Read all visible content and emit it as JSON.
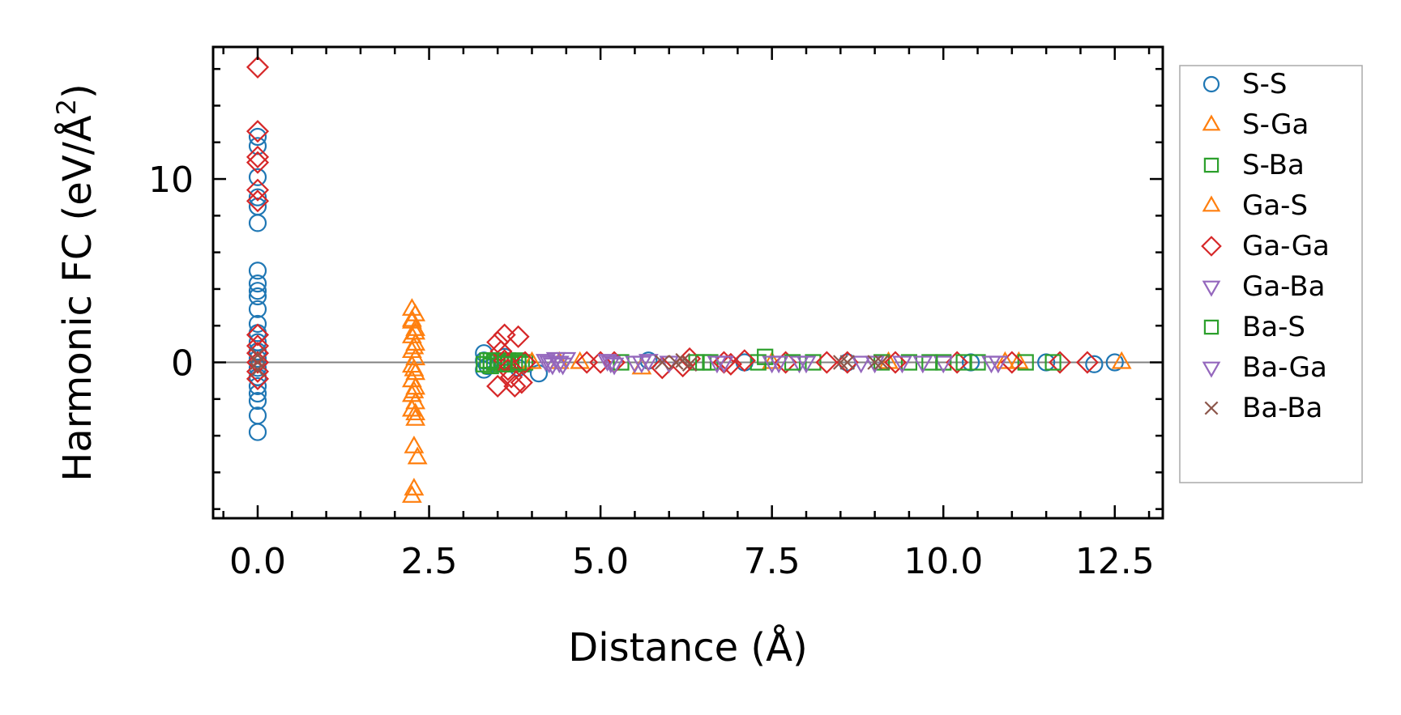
{
  "chart_data": {
    "type": "scatter",
    "title": "",
    "xlabel": "Distance (Å)",
    "ylabel": "Harmonic FC (eV/Å",
    "ylabel_superscript": "2",
    "ylabel_suffix": ")",
    "xlim": [
      -0.65,
      13.2
    ],
    "ylim": [
      -8.5,
      17.2
    ],
    "xticks": [
      0.0,
      2.5,
      5.0,
      7.5,
      10.0,
      12.5
    ],
    "xtick_labels": [
      "0.0",
      "2.5",
      "5.0",
      "7.5",
      "10.0",
      "12.5"
    ],
    "yticks": [
      0,
      10
    ],
    "ytick_labels": [
      "0",
      "10"
    ],
    "grid": false,
    "legend_position": "outside-right",
    "reference_line_y": 0,
    "series": [
      {
        "name": "S-S",
        "color": "#1f77b4",
        "marker": "circle",
        "filled": false,
        "points": [
          [
            0,
            12.3
          ],
          [
            0,
            11.8
          ],
          [
            0,
            10.1
          ],
          [
            0,
            9.0
          ],
          [
            0,
            8.5
          ],
          [
            0,
            7.6
          ],
          [
            0,
            5.0
          ],
          [
            0,
            4.3
          ],
          [
            0,
            3.9
          ],
          [
            0,
            3.6
          ],
          [
            0,
            2.9
          ],
          [
            0,
            2.1
          ],
          [
            0,
            1.6
          ],
          [
            0,
            1.1
          ],
          [
            0,
            0.6
          ],
          [
            0,
            0.2
          ],
          [
            0,
            -0.3
          ],
          [
            0,
            -0.8
          ],
          [
            0,
            -1.3
          ],
          [
            0,
            -1.7
          ],
          [
            0,
            -2.1
          ],
          [
            0,
            -2.9
          ],
          [
            0,
            -3.8
          ],
          [
            3.3,
            0.5
          ],
          [
            3.3,
            0.1
          ],
          [
            3.3,
            -0.4
          ],
          [
            3.35,
            -0.2
          ],
          [
            3.6,
            0.3
          ],
          [
            3.8,
            -0.3
          ],
          [
            4.1,
            -0.6
          ],
          [
            5.7,
            0.1
          ],
          [
            7.1,
            0.0
          ],
          [
            8.6,
            0.0
          ],
          [
            10.4,
            0.0
          ],
          [
            11.5,
            0.0
          ],
          [
            12.2,
            -0.1
          ],
          [
            12.5,
            0.0
          ]
        ]
      },
      {
        "name": "S-Ga",
        "color": "#ff7f0e",
        "marker": "triangle-up",
        "filled": false,
        "points": [
          [
            2.25,
            2.9
          ],
          [
            2.3,
            2.6
          ],
          [
            2.25,
            2.2
          ],
          [
            2.3,
            1.8
          ],
          [
            2.25,
            1.4
          ],
          [
            2.3,
            1.0
          ],
          [
            2.25,
            0.6
          ],
          [
            2.3,
            0.2
          ],
          [
            2.25,
            -0.2
          ],
          [
            2.3,
            -0.6
          ],
          [
            2.25,
            -1.0
          ],
          [
            2.3,
            -1.4
          ],
          [
            2.25,
            -1.8
          ],
          [
            2.3,
            -2.2
          ],
          [
            2.25,
            -2.6
          ],
          [
            2.3,
            -3.1
          ],
          [
            2.28,
            -4.6
          ],
          [
            2.33,
            -5.2
          ],
          [
            2.28,
            -6.9
          ],
          [
            2.25,
            -7.3
          ],
          [
            4.4,
            0.0
          ],
          [
            5.6,
            -0.3
          ],
          [
            7.5,
            0.0
          ],
          [
            9.2,
            0.0
          ],
          [
            11.1,
            0.0
          ],
          [
            12.6,
            0.0
          ]
        ]
      },
      {
        "name": "S-Ba",
        "color": "#2ca02c",
        "marker": "square",
        "filled": false,
        "points": [
          [
            3.3,
            -0.1
          ],
          [
            3.35,
            0.1
          ],
          [
            3.4,
            -0.2
          ],
          [
            3.45,
            0.0
          ],
          [
            3.5,
            0.1
          ],
          [
            3.55,
            -0.1
          ],
          [
            3.6,
            0.0
          ],
          [
            3.65,
            0.1
          ],
          [
            3.7,
            -0.1
          ],
          [
            3.75,
            0.0
          ],
          [
            3.8,
            0.1
          ],
          [
            3.85,
            -0.1
          ],
          [
            3.9,
            0.0
          ],
          [
            5.3,
            0.0
          ],
          [
            6.4,
            0.0
          ],
          [
            6.6,
            0.0
          ],
          [
            7.3,
            0.0
          ],
          [
            7.4,
            0.3
          ],
          [
            8.1,
            0.0
          ],
          [
            9.1,
            0.0
          ],
          [
            9.5,
            0.0
          ],
          [
            10.0,
            0.0
          ],
          [
            10.5,
            0.0
          ],
          [
            11.2,
            0.0
          ]
        ]
      },
      {
        "name": "Ga-S",
        "color": "#ff7f0e",
        "marker": "triangle-up",
        "filled": false,
        "points": [
          [
            2.25,
            2.3
          ],
          [
            2.3,
            1.6
          ],
          [
            2.28,
            0.8
          ],
          [
            2.28,
            -0.4
          ],
          [
            2.28,
            -1.6
          ],
          [
            2.3,
            -2.8
          ],
          [
            4.0,
            0.0
          ],
          [
            4.7,
            0.0
          ],
          [
            10.9,
            0.0
          ]
        ]
      },
      {
        "name": "Ga-Ga",
        "color": "#d62728",
        "marker": "diamond",
        "filled": false,
        "points": [
          [
            0,
            16.1
          ],
          [
            0,
            12.6
          ],
          [
            0,
            11.2
          ],
          [
            0,
            10.9
          ],
          [
            0,
            9.4
          ],
          [
            0,
            8.8
          ],
          [
            0,
            1.5
          ],
          [
            0,
            0.9
          ],
          [
            0,
            0.5
          ],
          [
            0,
            0.0
          ],
          [
            0,
            -0.5
          ],
          [
            0,
            -0.9
          ],
          [
            3.5,
            1.1
          ],
          [
            3.55,
            0.6
          ],
          [
            3.6,
            0.1
          ],
          [
            3.65,
            -0.4
          ],
          [
            3.7,
            -0.8
          ],
          [
            3.75,
            -1.3
          ],
          [
            3.8,
            1.4
          ],
          [
            3.85,
            -1.1
          ],
          [
            3.9,
            0.0
          ],
          [
            3.5,
            -1.3
          ],
          [
            3.6,
            1.5
          ],
          [
            4.8,
            0.0
          ],
          [
            5.0,
            0.0
          ],
          [
            5.2,
            0.0
          ],
          [
            5.9,
            -0.3
          ],
          [
            6.2,
            -0.2
          ],
          [
            6.3,
            0.2
          ],
          [
            6.8,
            0.0
          ],
          [
            6.9,
            -0.1
          ],
          [
            7.1,
            0.1
          ],
          [
            7.7,
            0.0
          ],
          [
            8.3,
            0.0
          ],
          [
            8.6,
            0.0
          ],
          [
            9.3,
            0.0
          ],
          [
            10.2,
            0.0
          ],
          [
            11.0,
            0.0
          ],
          [
            11.7,
            0.0
          ],
          [
            12.1,
            0.0
          ]
        ]
      },
      {
        "name": "Ga-Ba",
        "color": "#9467bd",
        "marker": "triangle-down",
        "filled": false,
        "points": [
          [
            4.2,
            0.1
          ],
          [
            4.3,
            -0.1
          ],
          [
            4.4,
            0.0
          ],
          [
            4.5,
            0.2
          ],
          [
            5.1,
            0.1
          ],
          [
            5.2,
            -0.1
          ],
          [
            5.6,
            0.0
          ],
          [
            5.7,
            0.1
          ],
          [
            6.0,
            0.0
          ],
          [
            6.8,
            0.0
          ],
          [
            7.5,
            0.0
          ],
          [
            7.9,
            0.0
          ],
          [
            8.8,
            0.0
          ],
          [
            9.4,
            0.0
          ],
          [
            10.0,
            0.0
          ],
          [
            10.7,
            0.0
          ]
        ]
      },
      {
        "name": "Ba-S",
        "color": "#2ca02c",
        "marker": "square",
        "filled": false,
        "points": [
          [
            3.4,
            0.1
          ],
          [
            3.6,
            -0.1
          ],
          [
            3.8,
            0.0
          ],
          [
            6.5,
            0.0
          ],
          [
            7.8,
            0.0
          ],
          [
            9.8,
            0.0
          ],
          [
            10.3,
            0.0
          ],
          [
            11.6,
            0.0
          ]
        ]
      },
      {
        "name": "Ba-Ga",
        "color": "#9467bd",
        "marker": "triangle-down",
        "filled": false,
        "points": [
          [
            4.25,
            0.0
          ],
          [
            4.35,
            0.2
          ],
          [
            4.45,
            -0.1
          ],
          [
            5.15,
            0.0
          ],
          [
            5.5,
            0.0
          ],
          [
            6.7,
            0.0
          ],
          [
            7.6,
            0.0
          ],
          [
            8.0,
            0.0
          ],
          [
            9.0,
            0.0
          ],
          [
            9.7,
            0.0
          ],
          [
            10.8,
            0.0
          ]
        ]
      },
      {
        "name": "Ba-Ba",
        "color": "#8c564b",
        "marker": "x",
        "filled": false,
        "points": [
          [
            0,
            0.4
          ],
          [
            0,
            0.0
          ],
          [
            0,
            -0.4
          ],
          [
            5.9,
            0.0
          ],
          [
            6.1,
            0.0
          ],
          [
            6.2,
            0.1
          ],
          [
            6.3,
            -0.1
          ],
          [
            8.5,
            0.0
          ],
          [
            8.6,
            0.0
          ],
          [
            9.0,
            0.0
          ],
          [
            9.1,
            0.0
          ]
        ]
      }
    ]
  }
}
